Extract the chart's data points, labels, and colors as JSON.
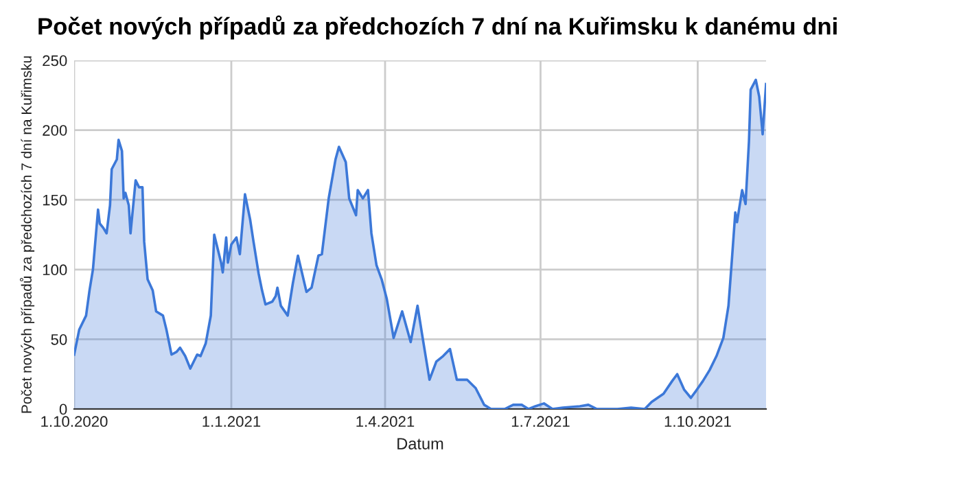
{
  "chart_data": {
    "type": "area",
    "title": "Počet nových případů za předchozích 7 dní na Kuřimsku k danému dni",
    "xlabel": "Datum",
    "ylabel": "Počet nových případů za předchozích 7 dní na Kuřimsku",
    "x": [
      "2020-10-01",
      "2020-10-04",
      "2020-10-08",
      "2020-10-10",
      "2020-10-12",
      "2020-10-15",
      "2020-10-16",
      "2020-10-18",
      "2020-10-20",
      "2020-10-22",
      "2020-10-23",
      "2020-10-26",
      "2020-10-27",
      "2020-10-29",
      "2020-10-30",
      "2020-10-31",
      "2020-11-02",
      "2020-11-03",
      "2020-11-06",
      "2020-11-08",
      "2020-11-10",
      "2020-11-11",
      "2020-11-13",
      "2020-11-16",
      "2020-11-18",
      "2020-11-22",
      "2020-11-24",
      "2020-11-27",
      "2020-11-30",
      "2020-12-02",
      "2020-12-05",
      "2020-12-08",
      "2020-12-12",
      "2020-12-14",
      "2020-12-17",
      "2020-12-20",
      "2020-12-22",
      "2020-12-26",
      "2020-12-27",
      "2020-12-29",
      "2020-12-30",
      "2021-01-01",
      "2021-01-04",
      "2021-01-06",
      "2021-01-09",
      "2021-01-12",
      "2021-01-14",
      "2021-01-17",
      "2021-01-19",
      "2021-01-21",
      "2021-01-25",
      "2021-01-27",
      "2021-01-28",
      "2021-01-30",
      "2021-02-03",
      "2021-02-06",
      "2021-02-09",
      "2021-02-14",
      "2021-02-17",
      "2021-02-21",
      "2021-02-23",
      "2021-02-27",
      "2021-03-03",
      "2021-03-05",
      "2021-03-09",
      "2021-03-11",
      "2021-03-15",
      "2021-03-16",
      "2021-03-19",
      "2021-03-22",
      "2021-03-24",
      "2021-03-27",
      "2021-03-30",
      "2021-04-02",
      "2021-04-06",
      "2021-04-11",
      "2021-04-16",
      "2021-04-20",
      "2021-04-23",
      "2021-04-27",
      "2021-05-01",
      "2021-05-05",
      "2021-05-09",
      "2021-05-13",
      "2021-05-19",
      "2021-05-24",
      "2021-05-29",
      "2021-06-02",
      "2021-06-10",
      "2021-06-15",
      "2021-06-20",
      "2021-06-24",
      "2021-06-28",
      "2021-07-03",
      "2021-07-08",
      "2021-07-14",
      "2021-07-24",
      "2021-07-29",
      "2021-08-03",
      "2021-08-15",
      "2021-08-23",
      "2021-08-31",
      "2021-09-04",
      "2021-09-11",
      "2021-09-16",
      "2021-09-19",
      "2021-09-23",
      "2021-09-27",
      "2021-09-30",
      "2021-10-04",
      "2021-10-08",
      "2021-10-12",
      "2021-10-16",
      "2021-10-19",
      "2021-10-21",
      "2021-10-23",
      "2021-10-24",
      "2021-10-27",
      "2021-10-29",
      "2021-10-31",
      "2021-11-01",
      "2021-11-04",
      "2021-11-06",
      "2021-11-08",
      "2021-11-10"
    ],
    "series": [
      {
        "color": "#3c78d8",
        "values": [
          39,
          57,
          67,
          85,
          100,
          143,
          133,
          130,
          126,
          146,
          172,
          179,
          193,
          185,
          151,
          155,
          146,
          126,
          164,
          159,
          159,
          120,
          93,
          85,
          70,
          67,
          57,
          39,
          41,
          44,
          38,
          29,
          39,
          38,
          47,
          67,
          125,
          105,
          98,
          123,
          105,
          118,
          123,
          111,
          154,
          136,
          120,
          97,
          85,
          75,
          77,
          81,
          87,
          74,
          67,
          90,
          110,
          84,
          87,
          110,
          111,
          151,
          179,
          188,
          177,
          151,
          139,
          157,
          151,
          157,
          126,
          103,
          93,
          79,
          51,
          70,
          48,
          74,
          51,
          21,
          34,
          38,
          43,
          21,
          21,
          15,
          3,
          0,
          0,
          3,
          3,
          0,
          2,
          4,
          0,
          1,
          2,
          3,
          0,
          0,
          1,
          0,
          5,
          11,
          20,
          25,
          14,
          8,
          13,
          20,
          28,
          38,
          51,
          74,
          107,
          141,
          134,
          157,
          147,
          192,
          229,
          236,
          224,
          197,
          233
        ]
      }
    ],
    "xlim": [
      "2020-10-01",
      "2021-11-10"
    ],
    "xticks": [
      {
        "value": "2020-10-01",
        "label": "1.10.2020"
      },
      {
        "value": "2021-01-01",
        "label": "1.1.2021"
      },
      {
        "value": "2021-04-01",
        "label": "1.4.2021"
      },
      {
        "value": "2021-07-01",
        "label": "1.7.2021"
      },
      {
        "value": "2021-10-01",
        "label": "1.10.2021"
      }
    ],
    "ylim": [
      0,
      250
    ],
    "yticks": [
      0,
      50,
      100,
      150,
      200,
      250
    ],
    "grid": true,
    "legend": false
  }
}
